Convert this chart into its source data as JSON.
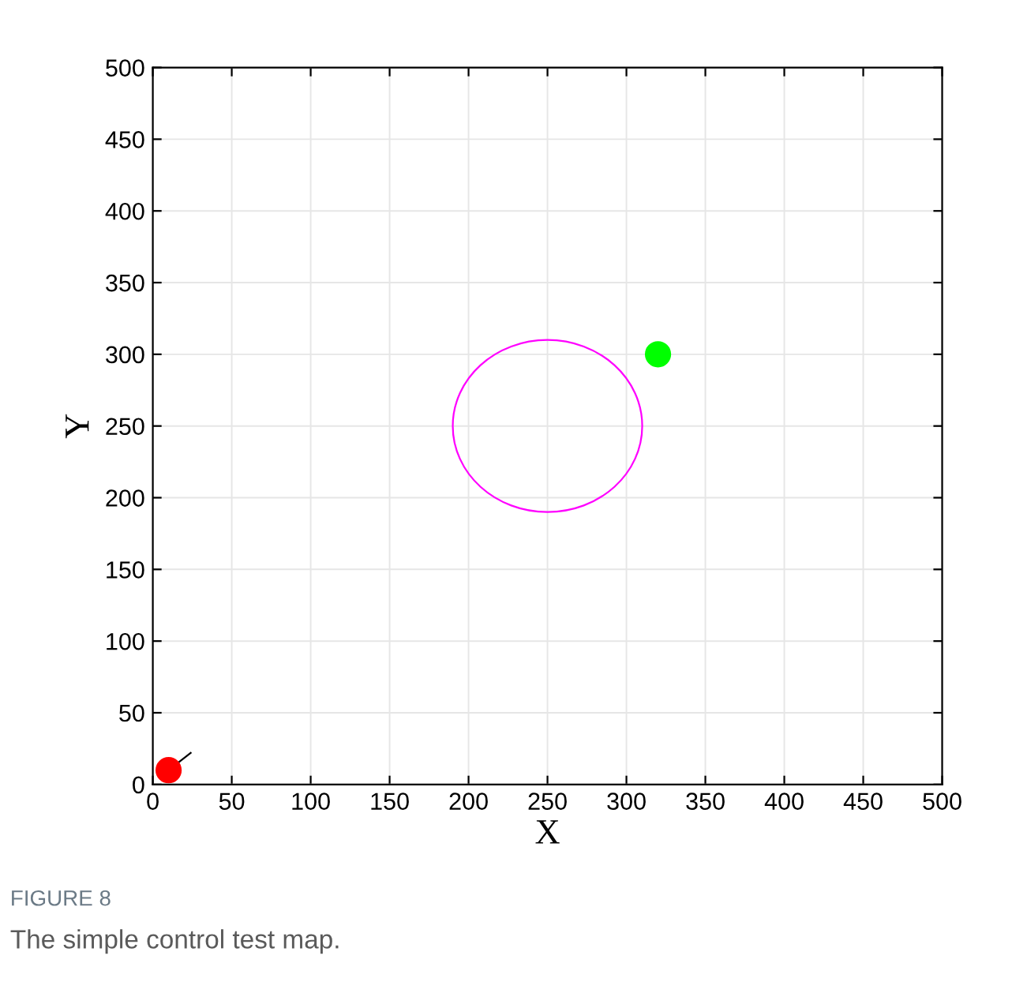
{
  "chart_data": {
    "type": "scatter",
    "xlabel": "X",
    "ylabel": "Y",
    "xlim": [
      0,
      500
    ],
    "ylim": [
      0,
      500
    ],
    "xticks": [
      0,
      50,
      100,
      150,
      200,
      250,
      300,
      350,
      400,
      450,
      500
    ],
    "yticks": [
      0,
      50,
      100,
      150,
      200,
      250,
      300,
      350,
      400,
      450,
      500
    ],
    "grid": true,
    "series": [
      {
        "type": "line",
        "color": "#000000",
        "marker": "none",
        "x": [
          10,
          24
        ],
        "values": [
          10,
          22
        ]
      },
      {
        "color": "#ff0000",
        "marker": "circle",
        "x": [
          10
        ],
        "values": [
          10
        ]
      },
      {
        "color": "#00ff00",
        "marker": "circle",
        "x": [
          320
        ],
        "values": [
          300
        ]
      }
    ],
    "annotations": [
      "FIGURE 8",
      "The simple control test map."
    ]
  }
}
